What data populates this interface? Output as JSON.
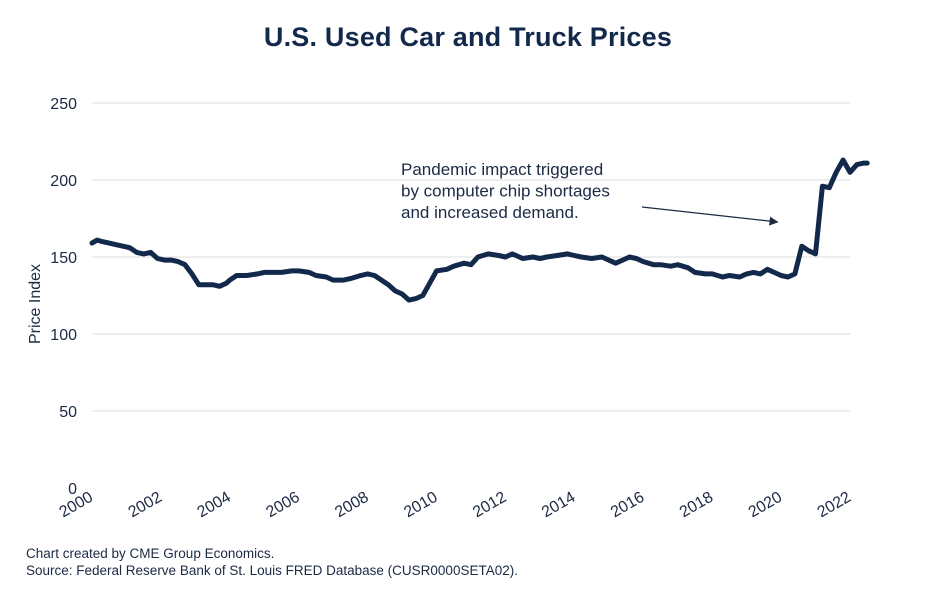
{
  "chart_data": {
    "type": "line",
    "title": "U.S. Used Car and Truck Prices",
    "ylabel": "Price Index",
    "xlabel": "",
    "ylim": [
      0,
      250
    ],
    "xlim": [
      2000,
      2022
    ],
    "yticks": [
      0,
      50,
      100,
      150,
      200,
      250
    ],
    "xticks": [
      "2000",
      "2002",
      "2004",
      "2006",
      "2008",
      "2010",
      "2012",
      "2014",
      "2016",
      "2018",
      "2020",
      "2022"
    ],
    "grid": "horizontal",
    "series": [
      {
        "color": "#13294b",
        "x": [
          2000.0,
          2000.15,
          2000.3,
          2000.5,
          2000.7,
          2000.9,
          2001.1,
          2001.3,
          2001.5,
          2001.7,
          2001.9,
          2002.1,
          2002.3,
          2002.5,
          2002.7,
          2002.9,
          2003.1,
          2003.3,
          2003.5,
          2003.7,
          2003.9,
          2004.0,
          2004.2,
          2004.5,
          2004.8,
          2005.0,
          2005.3,
          2005.5,
          2005.8,
          2006.0,
          2006.3,
          2006.5,
          2006.8,
          2007.0,
          2007.3,
          2007.5,
          2007.8,
          2008.0,
          2008.2,
          2008.4,
          2008.6,
          2008.8,
          2009.0,
          2009.2,
          2009.4,
          2009.6,
          2009.8,
          2010.0,
          2010.3,
          2010.5,
          2010.8,
          2011.0,
          2011.2,
          2011.5,
          2011.8,
          2012.0,
          2012.2,
          2012.5,
          2012.8,
          2013.0,
          2013.2,
          2013.5,
          2013.8,
          2014.0,
          2014.2,
          2014.5,
          2014.8,
          2015.0,
          2015.2,
          2015.4,
          2015.6,
          2015.8,
          2016.0,
          2016.3,
          2016.5,
          2016.8,
          2017.0,
          2017.3,
          2017.5,
          2017.8,
          2018.0,
          2018.3,
          2018.5,
          2018.8,
          2019.0,
          2019.2,
          2019.4,
          2019.6,
          2019.8,
          2020.0,
          2020.2,
          2020.4,
          2020.6,
          2020.8,
          2021.0,
          2021.2,
          2021.4,
          2021.6,
          2021.8,
          2022.0,
          2022.2,
          2022.4,
          2022.5
        ],
        "values": [
          159,
          161,
          160,
          159,
          158,
          157,
          156,
          153,
          152,
          153,
          149,
          148,
          148,
          147,
          145,
          139,
          132,
          132,
          132,
          131,
          133,
          135,
          138,
          138,
          139,
          140,
          140,
          140,
          141,
          141,
          140,
          138,
          137,
          135,
          135,
          136,
          138,
          139,
          138,
          135,
          132,
          128,
          126,
          122,
          123,
          125,
          133,
          141,
          142,
          144,
          146,
          145,
          150,
          152,
          151,
          150,
          152,
          149,
          150,
          149,
          150,
          151,
          152,
          151,
          150,
          149,
          150,
          148,
          146,
          148,
          150,
          149,
          147,
          145,
          145,
          144,
          145,
          143,
          140,
          139,
          139,
          137,
          138,
          137,
          139,
          140,
          139,
          142,
          140,
          138,
          137,
          139,
          157,
          154,
          152,
          196,
          195,
          205,
          213,
          205,
          210,
          211,
          211
        ],
        "x_fix": null
      }
    ],
    "annotations": [
      {
        "lines": [
          "Pandemic impact triggered",
          "by computer chip shortages",
          "and increased demand."
        ],
        "arrow_to": {
          "x": 2019.9,
          "y": 170
        }
      }
    ]
  },
  "footnotes": [
    "Chart created by CME Group Economics.",
    "Source: Federal Reserve Bank of St. Louis FRED Database (CUSR0000SETA02)."
  ]
}
